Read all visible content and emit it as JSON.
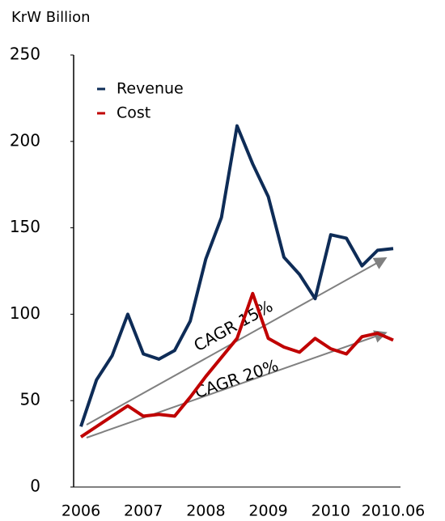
{
  "chart_data": {
    "type": "line",
    "y_label": "KrW Billion",
    "categories": [
      "2006",
      null,
      null,
      null,
      "2007",
      null,
      null,
      null,
      "2008",
      null,
      null,
      null,
      "2009",
      null,
      null,
      null,
      "2010",
      null,
      null,
      null,
      "2010.06"
    ],
    "series": [
      {
        "name": "Revenue",
        "color": "#0e2c57",
        "values": [
          35,
          62,
          76,
          100,
          77,
          74,
          79,
          96,
          132,
          156,
          209,
          187,
          168,
          133,
          123,
          109,
          146,
          144,
          128,
          137,
          138
        ]
      },
      {
        "name": "Cost",
        "color": "#c00000",
        "values": [
          29,
          35,
          41,
          47,
          41,
          42,
          41,
          52,
          64,
          75,
          86,
          112,
          86,
          81,
          78,
          86,
          80,
          77,
          87,
          89,
          85
        ]
      }
    ],
    "annotations": [
      "CAGR 15%",
      "CAGR 20%"
    ],
    "ylim": [
      0,
      250
    ],
    "yticks": [
      0,
      50,
      100,
      150,
      200,
      250
    ],
    "grid": false,
    "legend": "upper left"
  }
}
